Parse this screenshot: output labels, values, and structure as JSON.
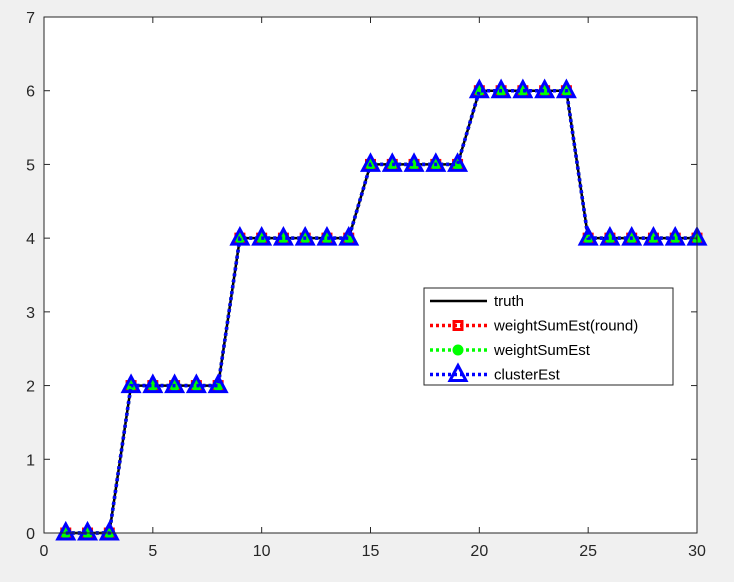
{
  "chart_data": {
    "type": "line",
    "title": "",
    "xlabel": "",
    "ylabel": "",
    "xlim": [
      0,
      30
    ],
    "ylim": [
      0,
      7
    ],
    "xticks": [
      0,
      5,
      10,
      15,
      20,
      25,
      30
    ],
    "yticks": [
      0,
      1,
      2,
      3,
      4,
      5,
      6,
      7
    ],
    "grid": false,
    "legend_position": "center-right",
    "x": [
      1,
      2,
      3,
      4,
      5,
      6,
      7,
      8,
      9,
      10,
      11,
      12,
      13,
      14,
      15,
      16,
      17,
      18,
      19,
      20,
      21,
      22,
      23,
      24,
      25,
      26,
      27,
      28,
      29,
      30
    ],
    "series": [
      {
        "name": "truth",
        "color": "#000000",
        "style": "solid",
        "marker": "none",
        "values": [
          0,
          0,
          0,
          2,
          2,
          2,
          2,
          2,
          4,
          4,
          4,
          4,
          4,
          4,
          5,
          5,
          5,
          5,
          5,
          6,
          6,
          6,
          6,
          6,
          4,
          4,
          4,
          4,
          4,
          4
        ]
      },
      {
        "name": "weightSumEst(round)",
        "color": "#ff0000",
        "style": "dotted",
        "marker": "square",
        "values": [
          0,
          0,
          0,
          2,
          2,
          2,
          2,
          2,
          4,
          4,
          4,
          4,
          4,
          4,
          5,
          5,
          5,
          5,
          5,
          6,
          6,
          6,
          6,
          6,
          4,
          4,
          4,
          4,
          4,
          4
        ]
      },
      {
        "name": "weightSumEst",
        "color": "#00ff00",
        "style": "dotted",
        "marker": "circle",
        "values": [
          0,
          0,
          0,
          2,
          2,
          2,
          2,
          2,
          4,
          4,
          4,
          4,
          4,
          4,
          5,
          5,
          5,
          5,
          5,
          6,
          6,
          6,
          6,
          6,
          4,
          4,
          4,
          4,
          4,
          4
        ]
      },
      {
        "name": "clusterEst",
        "color": "#0000ff",
        "style": "dotted",
        "marker": "triangle",
        "values": [
          0,
          0,
          0,
          2,
          2,
          2,
          2,
          2,
          4,
          4,
          4,
          4,
          4,
          4,
          5,
          5,
          5,
          5,
          5,
          6,
          6,
          6,
          6,
          6,
          4,
          4,
          4,
          4,
          4,
          4
        ]
      }
    ]
  }
}
